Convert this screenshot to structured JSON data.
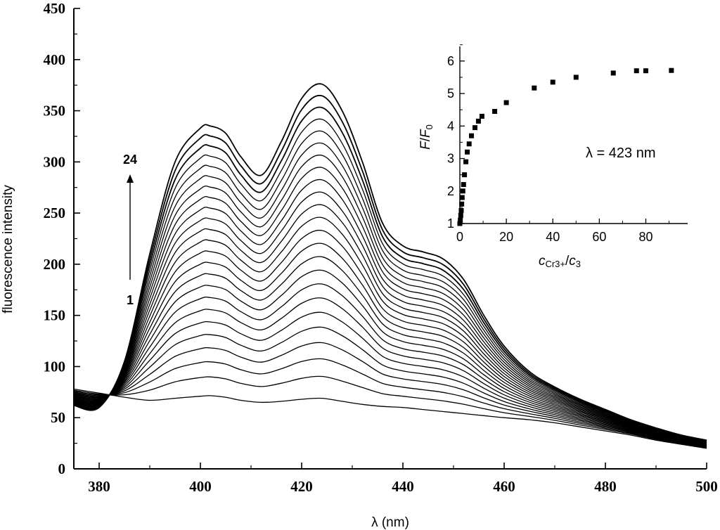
{
  "chart_data": [
    {
      "type": "line",
      "title": "",
      "xlabel": "λ (nm)",
      "ylabel": "fluorescence intensity",
      "xlim": [
        375,
        500
      ],
      "ylim": [
        0,
        450
      ],
      "xticks": [
        380,
        400,
        420,
        440,
        460,
        480,
        500
      ],
      "yticks": [
        0,
        50,
        100,
        150,
        200,
        250,
        300,
        350,
        400,
        450
      ],
      "series_count": 24,
      "series_first_label": "1",
      "series_last_label": "24",
      "curve_model": {
        "x": [
          375,
          380,
          385,
          390,
          395,
          400,
          402,
          405,
          408,
          412,
          416,
          420,
          424,
          428,
          432,
          436,
          440,
          444,
          448,
          452,
          456,
          460,
          465,
          470,
          475,
          480,
          485,
          490,
          495,
          500
        ],
        "baseline_spectrum": [
          78,
          74,
          70,
          67,
          69,
          71,
          71.5,
          70,
          67,
          65,
          66,
          68,
          69,
          66,
          63,
          61,
          60,
          58,
          56,
          54,
          52,
          50,
          48,
          45,
          41,
          37,
          33,
          28,
          24,
          20
        ],
        "saturated_spectrum": [
          62,
          60,
          105,
          210,
          300,
          333,
          335,
          328,
          305,
          287,
          320,
          362,
          376,
          350,
          300,
          240,
          218,
          212,
          205,
          185,
          150,
          120,
          95,
          80,
          68,
          58,
          48,
          40,
          33,
          28
        ]
      }
    },
    {
      "type": "scatter",
      "title": "",
      "xlabel_main": "c",
      "xlabel_sub1": "Cr3+",
      "xlabel_sep": "/",
      "xlabel_main2": "c",
      "xlabel_sub2": "3",
      "ylabel_main": "F",
      "ylabel_sep": "/",
      "ylabel_main2": "F",
      "ylabel_sub": "0",
      "annotation": "λ = 423 nm",
      "xlim": [
        0,
        98
      ],
      "ylim": [
        1,
        6.45
      ],
      "xticks": [
        0,
        20,
        40,
        60,
        80
      ],
      "yticks": [
        1,
        2,
        3,
        4,
        5,
        6
      ],
      "x": [
        0,
        0.2,
        0.4,
        0.6,
        0.8,
        1.0,
        1.3,
        1.6,
        2.0,
        2.6,
        3.2,
        4.0,
        5.0,
        6.5,
        8.0,
        9.5,
        15,
        20,
        32,
        40,
        50,
        66,
        76,
        80,
        91
      ],
      "y": [
        1.0,
        1.1,
        1.25,
        1.4,
        1.6,
        1.8,
        2.0,
        2.2,
        2.5,
        2.9,
        3.2,
        3.45,
        3.7,
        3.95,
        4.15,
        4.3,
        4.45,
        4.72,
        5.17,
        5.35,
        5.5,
        5.63,
        5.7,
        5.7,
        5.71
      ]
    }
  ]
}
